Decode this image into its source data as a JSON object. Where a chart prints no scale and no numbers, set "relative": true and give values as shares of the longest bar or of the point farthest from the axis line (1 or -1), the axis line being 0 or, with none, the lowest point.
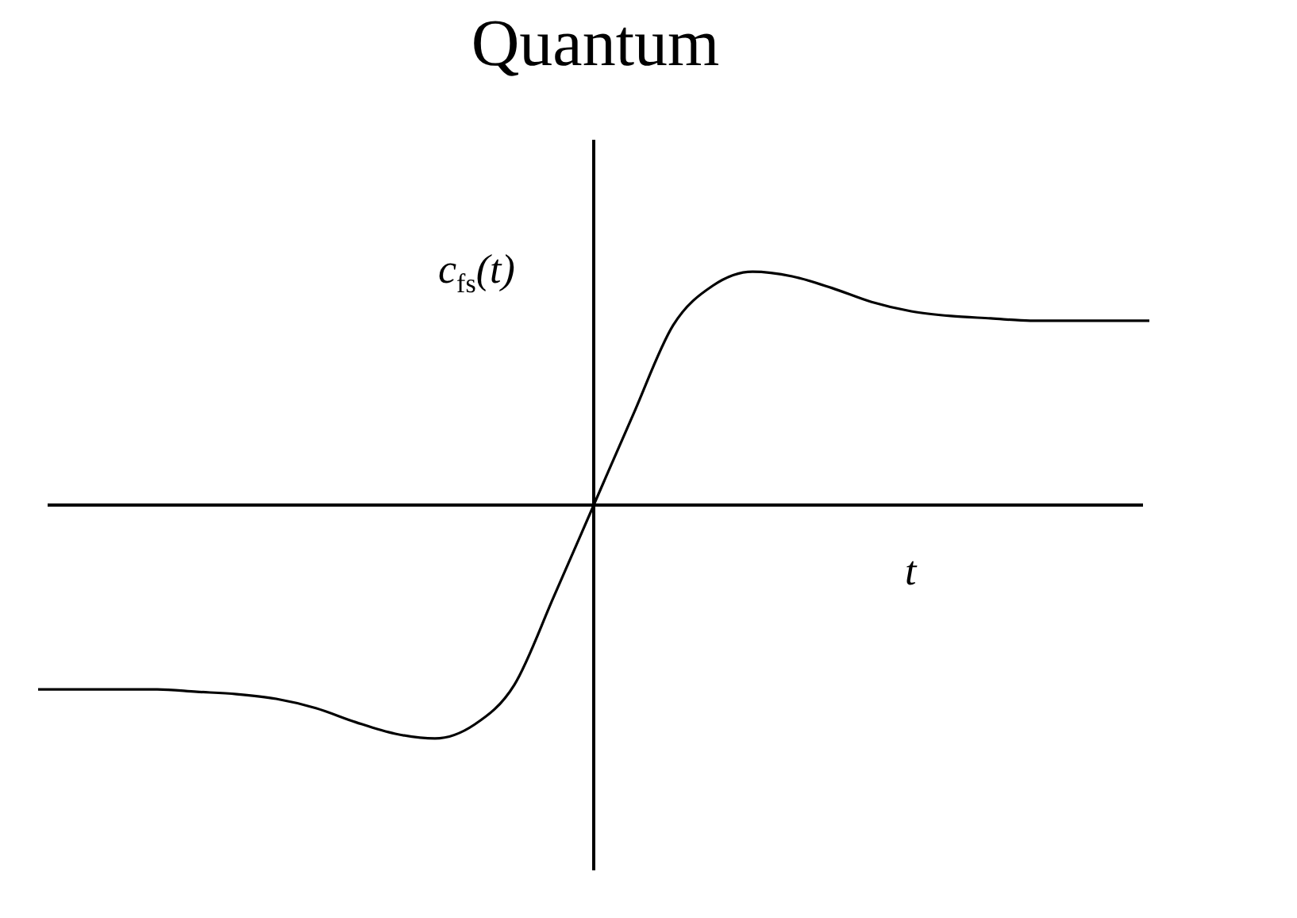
{
  "chart_data": {
    "type": "line",
    "title": "Quantum",
    "xlabel": "t",
    "ylabel": "c$_{fs}$(t)",
    "relative": true,
    "legend": false,
    "marker": "none",
    "line_style": "solid",
    "categories": [
      null,
      null,
      null,
      null,
      null,
      null,
      null,
      null,
      null,
      null,
      null,
      null,
      null,
      null,
      null,
      null,
      null,
      null,
      null,
      null,
      null,
      null,
      null,
      null,
      null,
      null,
      null,
      null,
      null
    ],
    "series": [
      {
        "color": "#000000",
        "values": [
          -0.79,
          -0.79,
          -0.79,
          -0.79,
          -0.8,
          -0.81,
          -0.83,
          -0.87,
          -0.93,
          -0.98,
          -1,
          -0.94,
          -0.77,
          -0.39,
          0,
          0.39,
          0.77,
          0.94,
          1,
          0.98,
          0.93,
          0.87,
          0.83,
          0.81,
          0.8,
          0.79,
          0.79,
          0.79,
          0.79
        ]
      }
    ]
  }
}
